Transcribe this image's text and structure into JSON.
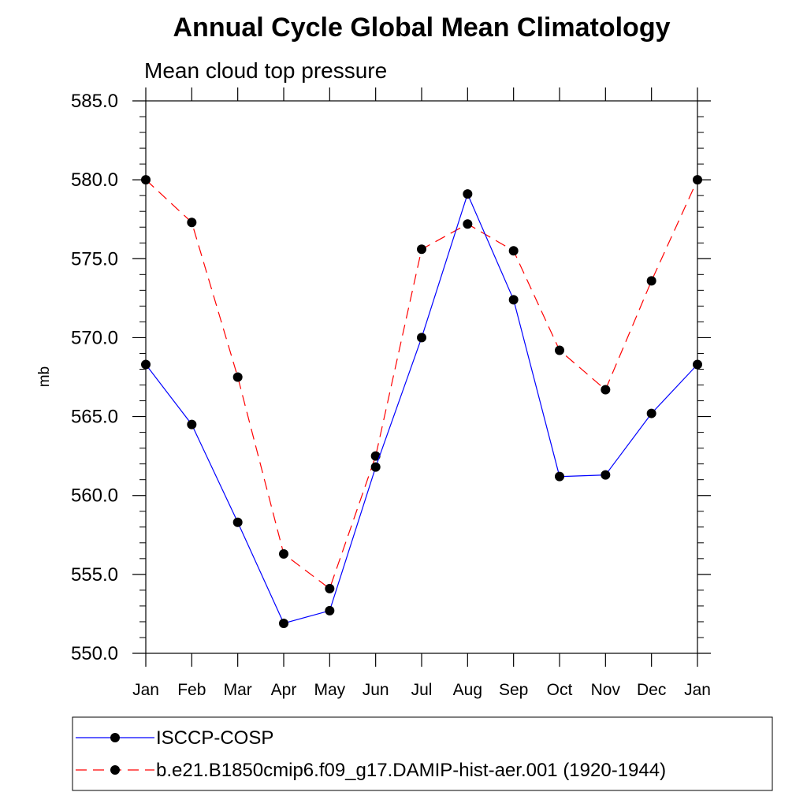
{
  "chart_data": {
    "type": "line",
    "title": "Annual Cycle Global Mean Climatology",
    "subtitle": "Mean cloud top pressure",
    "xlabel": "",
    "ylabel": "mb",
    "categories": [
      "Jan",
      "Feb",
      "Mar",
      "Apr",
      "May",
      "Jun",
      "Jul",
      "Aug",
      "Sep",
      "Oct",
      "Nov",
      "Dec",
      "Jan"
    ],
    "ylim": [
      550.0,
      585.0
    ],
    "yticks": [
      "550.0",
      "555.0",
      "560.0",
      "565.0",
      "570.0",
      "575.0",
      "580.0",
      "585.0"
    ],
    "grid": false,
    "legend_position": "bottom",
    "series": [
      {
        "name": "ISCCP-COSP",
        "color": "#0000ff",
        "line_style": "solid",
        "marker": "filled-circle",
        "values": [
          568.3,
          564.5,
          558.3,
          551.9,
          552.7,
          561.8,
          570.0,
          579.1,
          572.4,
          561.2,
          561.3,
          565.2,
          568.3
        ]
      },
      {
        "name": "b.e21.B1850cmip6.f09_g17.DAMIP-hist-aer.001 (1920-1944)",
        "color": "#ff0000",
        "line_style": "dashed",
        "marker": "filled-circle",
        "values": [
          580.0,
          577.3,
          567.5,
          556.3,
          554.1,
          562.5,
          575.6,
          577.2,
          575.5,
          569.2,
          566.7,
          573.6,
          580.0
        ]
      }
    ]
  }
}
